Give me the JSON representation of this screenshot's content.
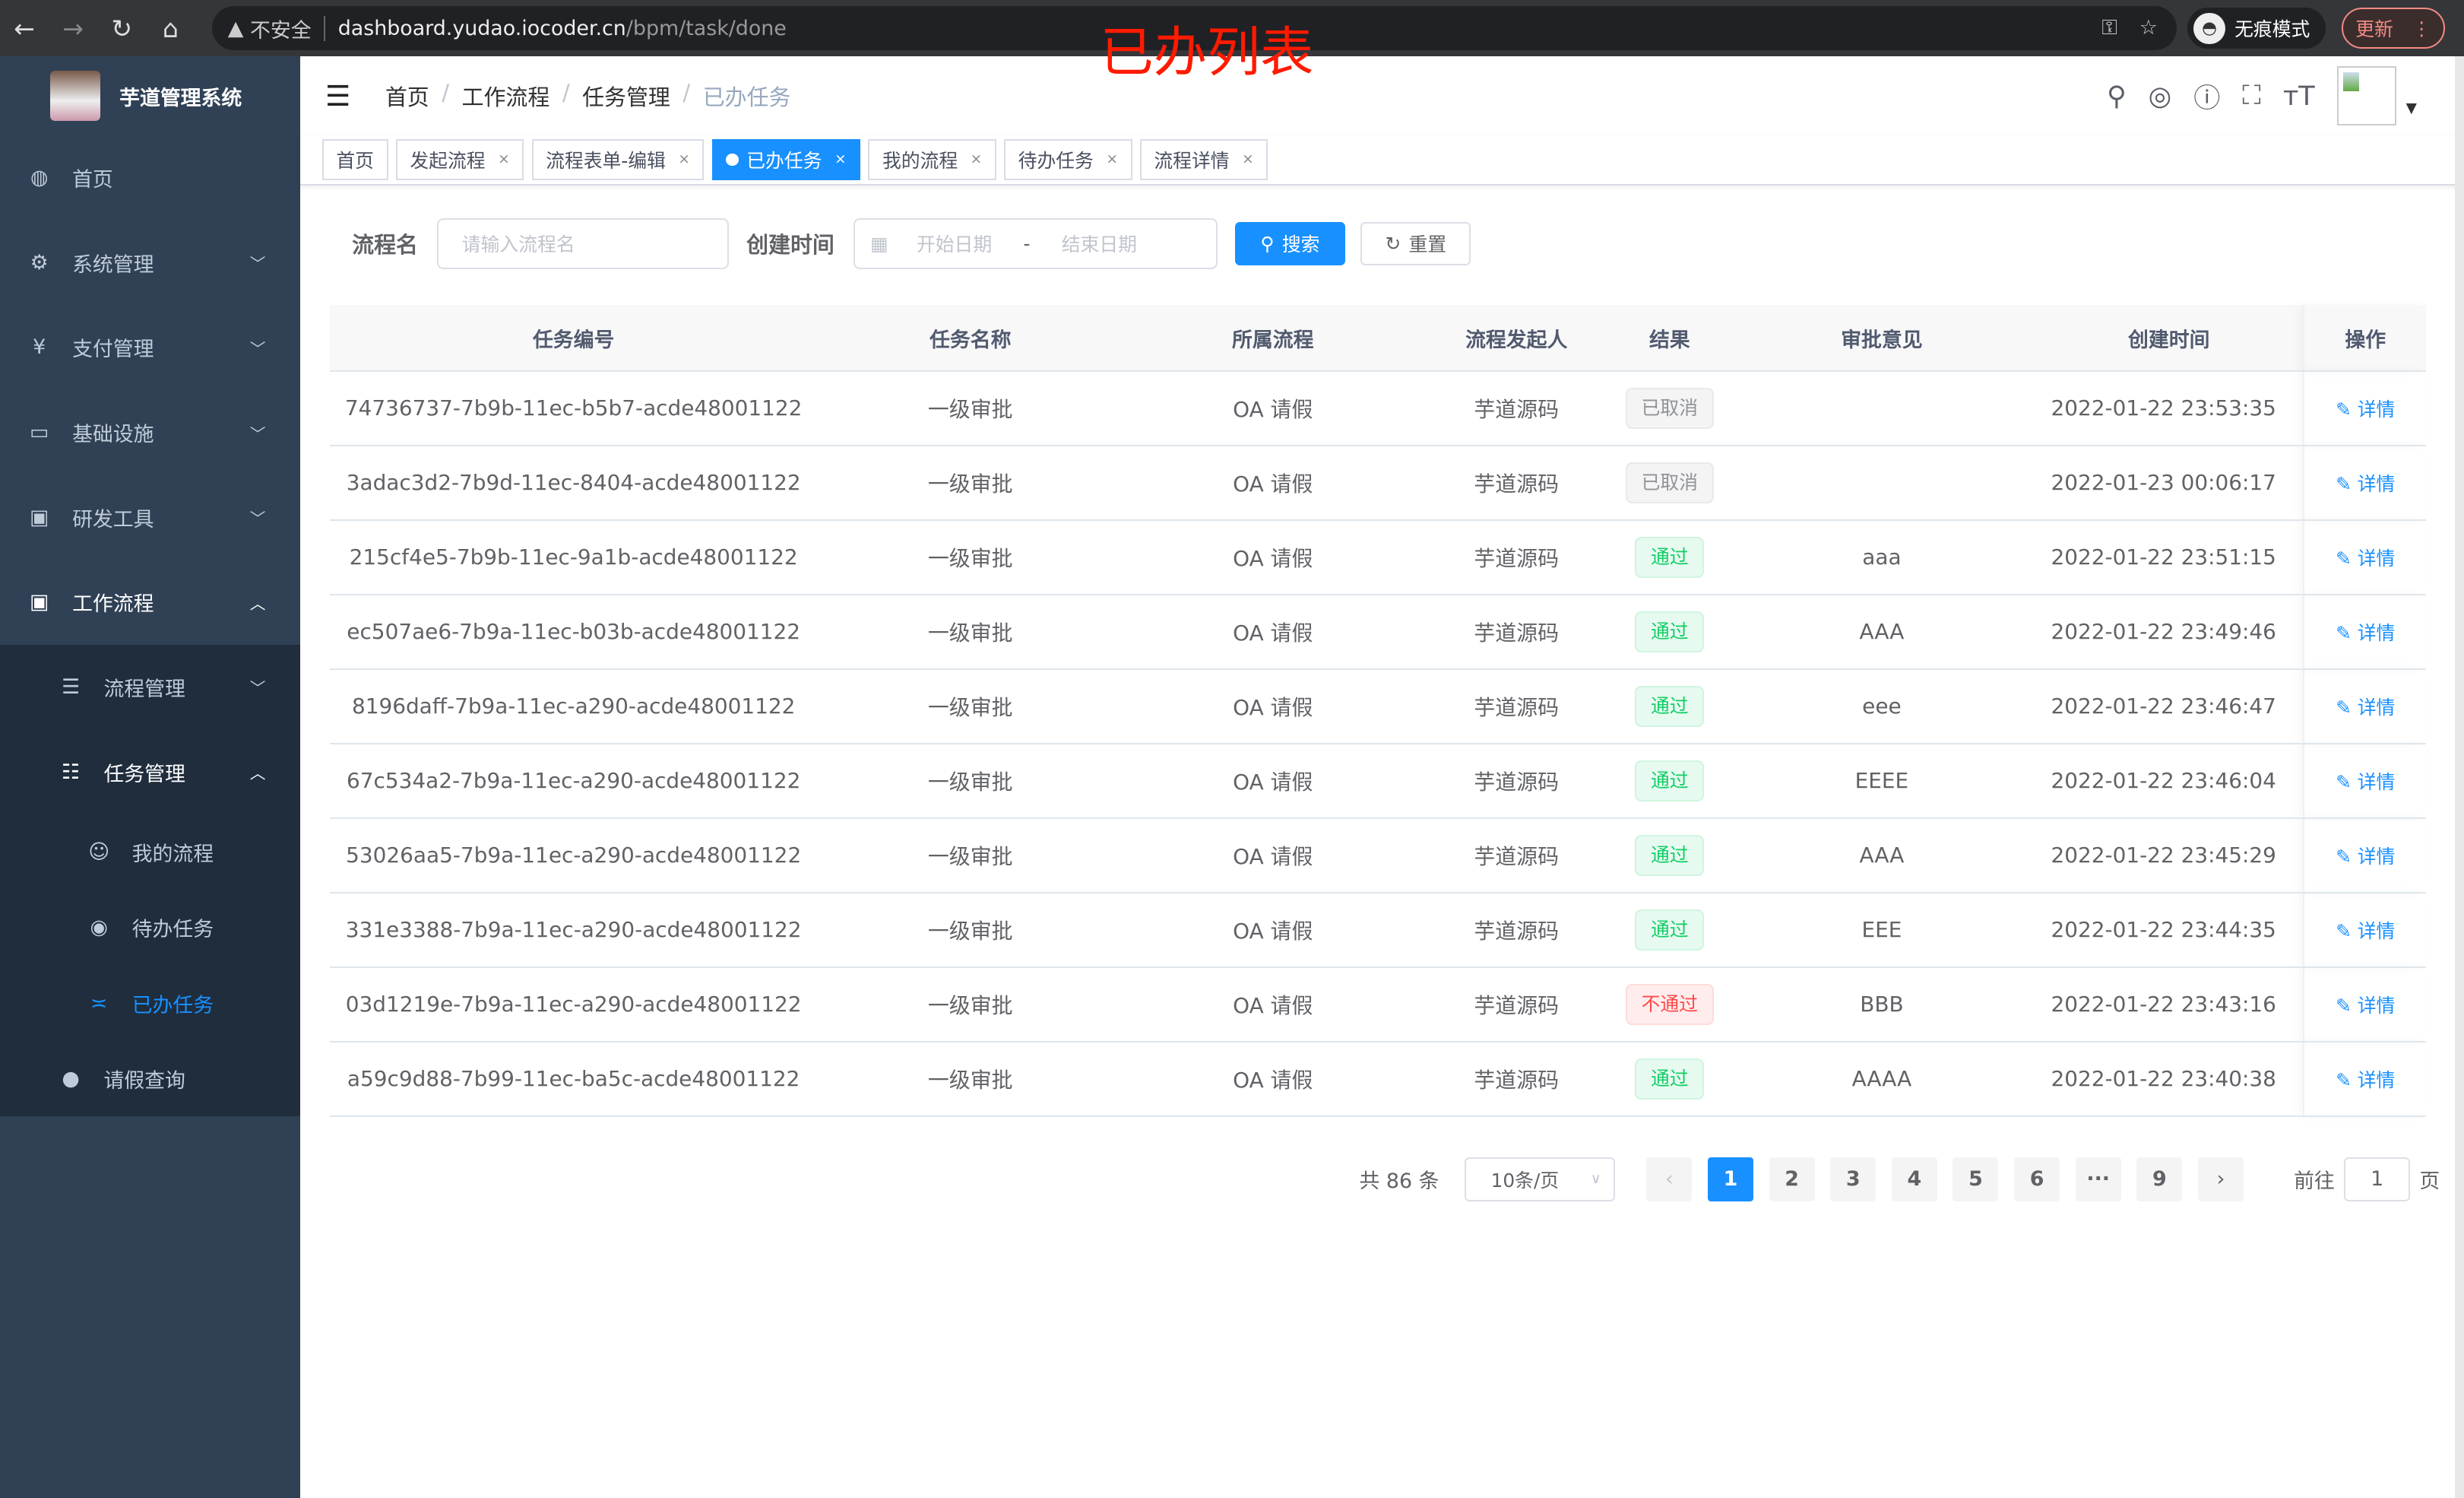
{
  "browser": {
    "security": "不安全",
    "url_host": "dashboard.yudao.iocoder.cn",
    "url_path": "/bpm/task/done",
    "incognito": "无痕模式",
    "update": "更新"
  },
  "annotation": "已办列表",
  "sidebar": {
    "title": "芋道管理系统",
    "items": [
      {
        "label": "首页",
        "icon": "dashboard-icon"
      },
      {
        "label": "系统管理",
        "icon": "gear-icon"
      },
      {
        "label": "支付管理",
        "icon": "yen-icon"
      },
      {
        "label": "基础设施",
        "icon": "monitor-icon"
      },
      {
        "label": "研发工具",
        "icon": "toolbox-icon"
      },
      {
        "label": "工作流程",
        "icon": "toolbox-icon"
      }
    ],
    "sub": [
      {
        "label": "流程管理"
      },
      {
        "label": "任务管理"
      }
    ],
    "sub3": [
      {
        "label": "我的流程"
      },
      {
        "label": "待办任务"
      },
      {
        "label": "已办任务"
      }
    ],
    "leave": "请假查询",
    "active_color": "#1890ff"
  },
  "breadcrumb": [
    "首页",
    "工作流程",
    "任务管理",
    "已办任务"
  ],
  "tags": [
    "首页",
    "发起流程",
    "流程表单-编辑",
    "已办任务",
    "我的流程",
    "待办任务",
    "流程详情"
  ],
  "search": {
    "name_label": "流程名",
    "name_placeholder": "请输入流程名",
    "time_label": "创建时间",
    "start_placeholder": "开始日期",
    "range_sep": "-",
    "end_placeholder": "结束日期",
    "search_btn": "搜索",
    "reset_btn": "重置"
  },
  "table": {
    "headers": [
      "任务编号",
      "任务名称",
      "所属流程",
      "流程发起人",
      "结果",
      "审批意见",
      "创建时间",
      "操作"
    ],
    "action": "详情",
    "rows": [
      {
        "id": "74736737-7b9b-11ec-b5b7-acde48001122",
        "name": "一级审批",
        "proc": "OA 请假",
        "user": "芋道源码",
        "result": "已取消",
        "status": "cancel",
        "comment": "",
        "time": "2022-01-22 23:53:35"
      },
      {
        "id": "3adac3d2-7b9d-11ec-8404-acde48001122",
        "name": "一级审批",
        "proc": "OA 请假",
        "user": "芋道源码",
        "result": "已取消",
        "status": "cancel",
        "comment": "",
        "time": "2022-01-23 00:06:17"
      },
      {
        "id": "215cf4e5-7b9b-11ec-9a1b-acde48001122",
        "name": "一级审批",
        "proc": "OA 请假",
        "user": "芋道源码",
        "result": "通过",
        "status": "pass",
        "comment": "aaa",
        "time": "2022-01-22 23:51:15"
      },
      {
        "id": "ec507ae6-7b9a-11ec-b03b-acde48001122",
        "name": "一级审批",
        "proc": "OA 请假",
        "user": "芋道源码",
        "result": "通过",
        "status": "pass",
        "comment": "AAA",
        "time": "2022-01-22 23:49:46"
      },
      {
        "id": "8196daff-7b9a-11ec-a290-acde48001122",
        "name": "一级审批",
        "proc": "OA 请假",
        "user": "芋道源码",
        "result": "通过",
        "status": "pass",
        "comment": "eee",
        "time": "2022-01-22 23:46:47"
      },
      {
        "id": "67c534a2-7b9a-11ec-a290-acde48001122",
        "name": "一级审批",
        "proc": "OA 请假",
        "user": "芋道源码",
        "result": "通过",
        "status": "pass",
        "comment": "EEEE",
        "time": "2022-01-22 23:46:04"
      },
      {
        "id": "53026aa5-7b9a-11ec-a290-acde48001122",
        "name": "一级审批",
        "proc": "OA 请假",
        "user": "芋道源码",
        "result": "通过",
        "status": "pass",
        "comment": "AAA",
        "time": "2022-01-22 23:45:29"
      },
      {
        "id": "331e3388-7b9a-11ec-a290-acde48001122",
        "name": "一级审批",
        "proc": "OA 请假",
        "user": "芋道源码",
        "result": "通过",
        "status": "pass",
        "comment": "EEE",
        "time": "2022-01-22 23:44:35"
      },
      {
        "id": "03d1219e-7b9a-11ec-a290-acde48001122",
        "name": "一级审批",
        "proc": "OA 请假",
        "user": "芋道源码",
        "result": "不通过",
        "status": "rej",
        "comment": "BBB",
        "time": "2022-01-22 23:43:16"
      },
      {
        "id": "a59c9d88-7b99-11ec-ba5c-acde48001122",
        "name": "一级审批",
        "proc": "OA 请假",
        "user": "芋道源码",
        "result": "通过",
        "status": "pass",
        "comment": "AAAA",
        "time": "2022-01-22 23:40:38"
      }
    ]
  },
  "pagination": {
    "total": "共 86 条",
    "page_size": "10条/页",
    "pages": [
      "1",
      "2",
      "3",
      "4",
      "5",
      "6",
      "···",
      "9"
    ],
    "current": "1",
    "goto_label": "前往",
    "goto_value": "1",
    "goto_suffix": "页"
  }
}
